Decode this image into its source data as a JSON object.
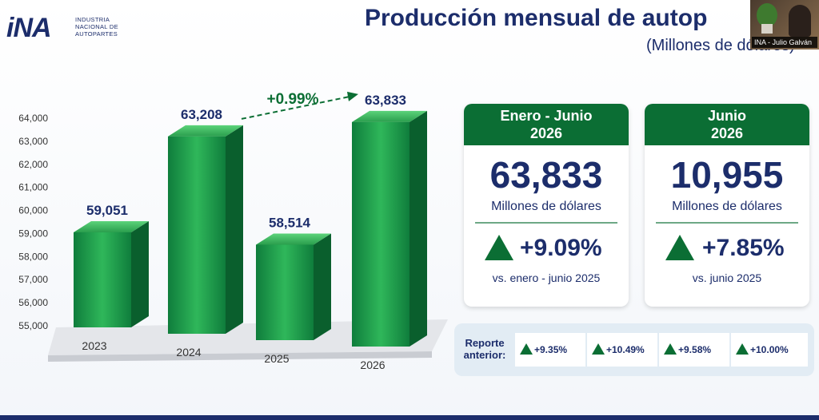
{
  "logo": {
    "mark": "iNA",
    "lines": [
      "INDUSTRIA",
      "NACIONAL DE",
      "AUTOPARTES"
    ]
  },
  "title": "Producción mensual de autop",
  "subtitle": "(Millones de dólares)",
  "webcam": {
    "label": "INA - Julio Galván"
  },
  "colors": {
    "brand_blue": "#1c2d6b",
    "brand_green": "#0b6e34"
  },
  "chart_data": {
    "type": "bar",
    "categories": [
      "2023",
      "2024",
      "2025",
      "2026"
    ],
    "values": [
      59051,
      63208,
      58514,
      63833
    ],
    "value_labels": [
      "59,051",
      "63,208",
      "58,514",
      "63,833"
    ],
    "ylim": [
      55000,
      64000
    ],
    "yticks": [
      "55,000",
      "56,000",
      "57,000",
      "58,000",
      "59,000",
      "60,000",
      "61,000",
      "62,000",
      "63,000",
      "64,000"
    ],
    "annotation": {
      "text": "+0.99%",
      "from": "2024",
      "to": "2026"
    },
    "title": "",
    "xlabel": "",
    "ylabel": ""
  },
  "cards": [
    {
      "header_line1": "Enero - Junio",
      "header_line2": "2026",
      "value": "63,833",
      "unit": "Millones de dólares",
      "pct": "+9.09%",
      "vs": "vs. enero - junio 2025"
    },
    {
      "header_line1": "Junio",
      "header_line2": "2026",
      "value": "10,955",
      "unit": "Millones de dólares",
      "pct": "+7.85%",
      "vs": "vs. junio 2025"
    }
  ],
  "report": {
    "label_line1": "Reporte",
    "label_line2": "anterior:",
    "items": [
      "+9.35%",
      "+10.49%",
      "+9.58%",
      "+10.00%"
    ]
  }
}
